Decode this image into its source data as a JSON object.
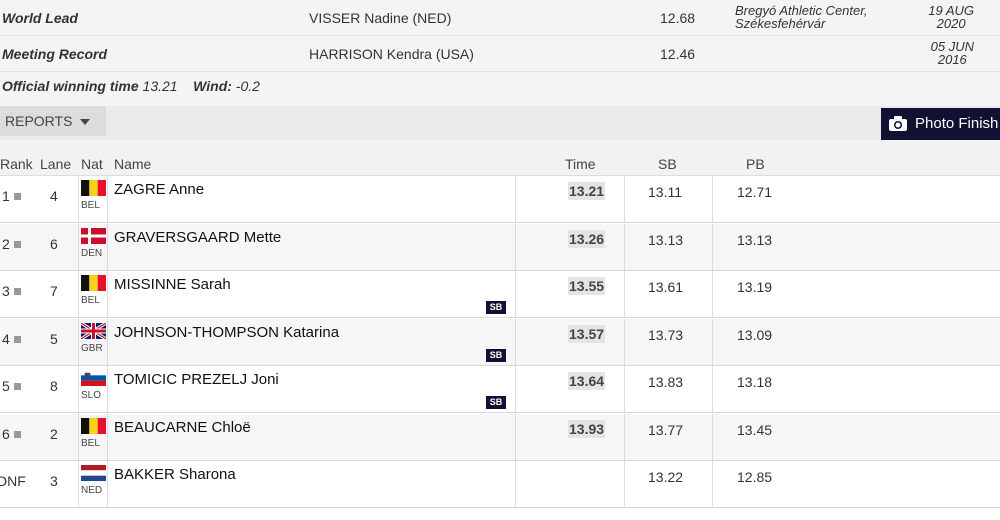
{
  "records": [
    {
      "label": "World Lead",
      "athlete": "VISSER Nadine (NED)",
      "mark": "12.68",
      "venue_line1": "Bregyó Athletic Center,",
      "venue_line2": "Székesfehérvár",
      "date_line1": "19 AUG",
      "date_line2": "2020"
    },
    {
      "label": "Meeting Record",
      "athlete": "HARRISON Kendra (USA)",
      "mark": "12.46",
      "venue_line1": "",
      "venue_line2": "",
      "date_line1": "05 JUN",
      "date_line2": "2016"
    }
  ],
  "official": {
    "label": "Official winning time",
    "time": "13.21",
    "wind_label": "Wind:",
    "wind": "-0.2"
  },
  "toolbar": {
    "reports_label": "REPORTS",
    "photo_finish_label": "Photo Finish"
  },
  "columns": {
    "rank": "Rank",
    "lane": "Lane",
    "nat": "Nat",
    "name": "Name",
    "time": "Time",
    "sb": "SB",
    "pb": "PB"
  },
  "results": [
    {
      "rank": "1",
      "lane": "4",
      "nat": "BEL",
      "flag": "bel",
      "name": "ZAGRE Anne",
      "time": "13.21",
      "sb": "13.11",
      "pb": "12.71",
      "badge": ""
    },
    {
      "rank": "2",
      "lane": "6",
      "nat": "DEN",
      "flag": "den",
      "name": "GRAVERSGAARD Mette",
      "time": "13.26",
      "sb": "13.13",
      "pb": "13.13",
      "badge": ""
    },
    {
      "rank": "3",
      "lane": "7",
      "nat": "BEL",
      "flag": "bel",
      "name": "MISSINNE Sarah",
      "time": "13.55",
      "sb": "13.61",
      "pb": "13.19",
      "badge": "SB"
    },
    {
      "rank": "4",
      "lane": "5",
      "nat": "GBR",
      "flag": "gbr",
      "name": "JOHNSON-THOMPSON Katarina",
      "time": "13.57",
      "sb": "13.73",
      "pb": "13.09",
      "badge": "SB"
    },
    {
      "rank": "5",
      "lane": "8",
      "nat": "SLO",
      "flag": "slo",
      "name": "TOMICIC PREZELJ Joni",
      "time": "13.64",
      "sb": "13.83",
      "pb": "13.18",
      "badge": "SB"
    },
    {
      "rank": "6",
      "lane": "2",
      "nat": "BEL",
      "flag": "bel",
      "name": "BEAUCARNE Chloë",
      "time": "13.93",
      "sb": "13.77",
      "pb": "13.45",
      "badge": ""
    },
    {
      "rank": "DNF",
      "lane": "3",
      "nat": "NED",
      "flag": "ned",
      "name": "BAKKER Sharona",
      "time": "",
      "sb": "13.22",
      "pb": "12.85",
      "badge": ""
    }
  ]
}
